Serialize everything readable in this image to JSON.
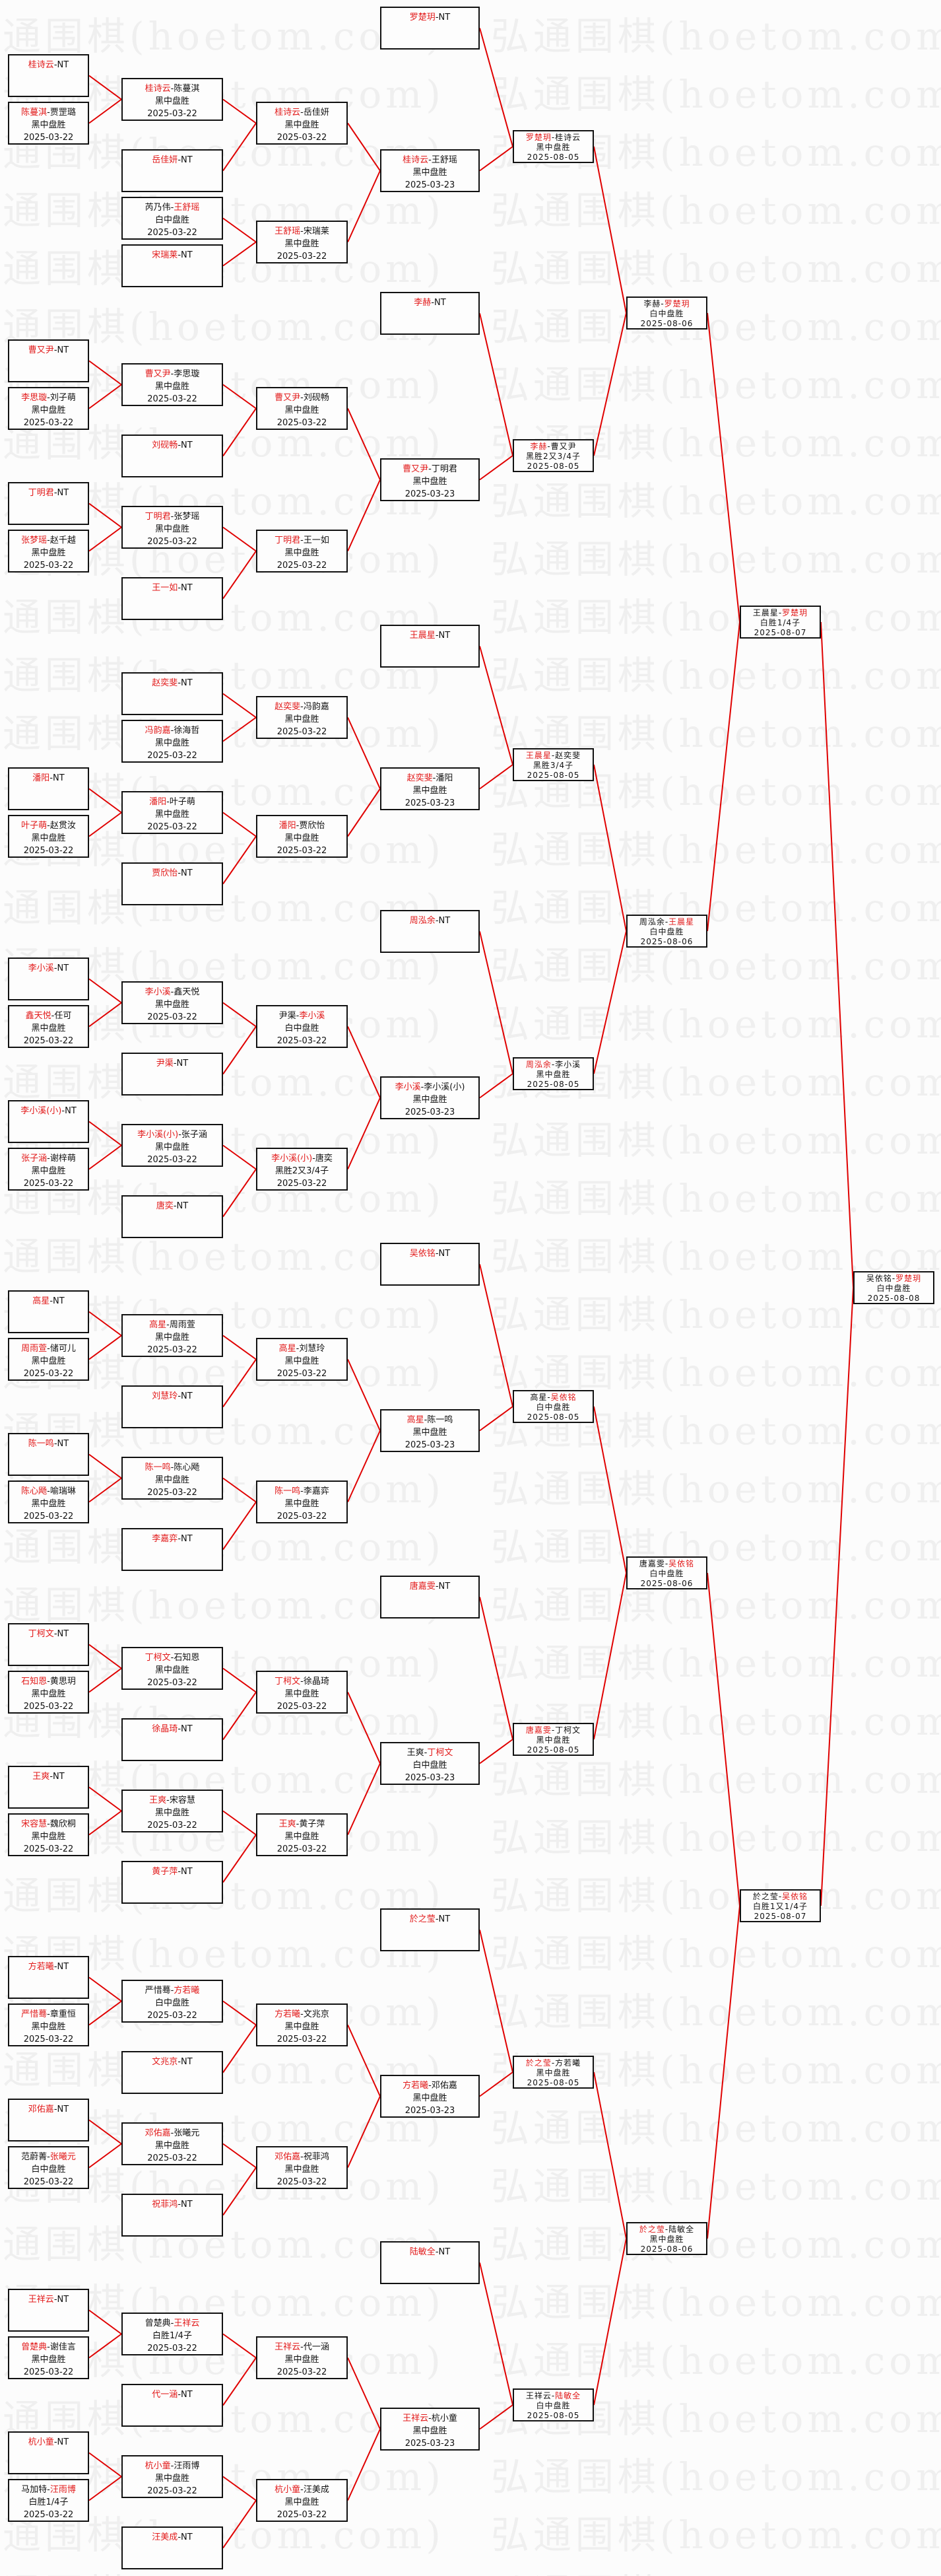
{
  "watermark": "弘通围棋(hoetom.com)",
  "separator": "-",
  "colors": {
    "winner": "#e21a1a",
    "link": "#e00000",
    "border": "#111111"
  },
  "rounds": [
    {
      "matches": [
        {
          "p1": "桂诗云",
          "p2": "NT",
          "winner": 1
        },
        {
          "p1": "陈蔓淇",
          "p2": "贾罡璐",
          "winner": 1,
          "result": "黑中盘胜",
          "date": "2025-03-22"
        },
        {
          "p1": "曹又尹",
          "p2": "NT",
          "winner": 1
        },
        {
          "p1": "李思璇",
          "p2": "刘子萌",
          "winner": 1,
          "result": "黑中盘胜",
          "date": "2025-03-22"
        },
        {
          "p1": "丁明君",
          "p2": "NT",
          "winner": 1
        },
        {
          "p1": "张梦瑶",
          "p2": "赵千越",
          "winner": 1,
          "result": "黑中盘胜",
          "date": "2025-03-22"
        },
        {
          "p1": "潘阳",
          "p2": "NT",
          "winner": 1
        },
        {
          "p1": "叶子萌",
          "p2": "赵贯汝",
          "winner": 1,
          "result": "黑中盘胜",
          "date": "2025-03-22"
        },
        {
          "p1": "李小溪",
          "p2": "NT",
          "winner": 1
        },
        {
          "p1": "鑫天悦",
          "p2": "任可",
          "winner": 1,
          "result": "黑中盘胜",
          "date": "2025-03-22"
        },
        {
          "p1": "李小溪(小)",
          "p2": "NT",
          "winner": 1
        },
        {
          "p1": "张子涵",
          "p2": "谢梓萌",
          "winner": 1,
          "result": "黑中盘胜",
          "date": "2025-03-22"
        },
        {
          "p1": "高星",
          "p2": "NT",
          "winner": 1
        },
        {
          "p1": "周雨萱",
          "p2": "储可儿",
          "winner": 1,
          "result": "黑中盘胜",
          "date": "2025-03-22"
        },
        {
          "p1": "陈一鸣",
          "p2": "NT",
          "winner": 1
        },
        {
          "p1": "陈心飏",
          "p2": "喻瑞琳",
          "winner": 1,
          "result": "黑中盘胜",
          "date": "2025-03-22"
        },
        {
          "p1": "丁柯文",
          "p2": "NT",
          "winner": 1
        },
        {
          "p1": "石知恩",
          "p2": "黄思玥",
          "winner": 1,
          "result": "黑中盘胜",
          "date": "2025-03-22"
        },
        {
          "p1": "王爽",
          "p2": "NT",
          "winner": 1
        },
        {
          "p1": "宋容慧",
          "p2": "魏欣桐",
          "winner": 1,
          "result": "黑中盘胜",
          "date": "2025-03-22"
        },
        {
          "p1": "方若曦",
          "p2": "NT",
          "winner": 1
        },
        {
          "p1": "严惜蓦",
          "p2": "章重恒",
          "winner": 1,
          "result": "黑中盘胜",
          "date": "2025-03-22"
        },
        {
          "p1": "邓佑嘉",
          "p2": "NT",
          "winner": 1
        },
        {
          "p1": "范蔚菁",
          "p2": "张曦元",
          "winner": 2,
          "result": "白中盘胜",
          "date": "2025-03-22"
        },
        {
          "p1": "王祥云",
          "p2": "NT",
          "winner": 1
        },
        {
          "p1": "曾楚典",
          "p2": "谢佳言",
          "winner": 1,
          "result": "黑中盘胜",
          "date": "2025-03-22"
        },
        {
          "p1": "杭小童",
          "p2": "NT",
          "winner": 1
        },
        {
          "p1": "马加特",
          "p2": "汪雨博",
          "winner": 2,
          "result": "白胜1/4子",
          "date": "2025-03-22"
        }
      ]
    },
    {
      "matches": [
        {
          "p1": "桂诗云",
          "p2": "陈蔓淇",
          "winner": 1,
          "result": "黑中盘胜",
          "date": "2025-03-22"
        },
        {
          "p1": "岳佳妍",
          "p2": "NT",
          "winner": 1
        },
        {
          "p1": "芮乃伟",
          "p2": "王舒瑶",
          "winner": 2,
          "result": "白中盘胜",
          "date": "2025-03-22"
        },
        {
          "p1": "宋瑞莱",
          "p2": "NT",
          "winner": 1
        },
        {
          "p1": "曹又尹",
          "p2": "李思璇",
          "winner": 1,
          "result": "黑中盘胜",
          "date": "2025-03-22"
        },
        {
          "p1": "刘砚畅",
          "p2": "NT",
          "winner": 1
        },
        {
          "p1": "丁明君",
          "p2": "张梦瑶",
          "winner": 1,
          "result": "黑中盘胜",
          "date": "2025-03-22"
        },
        {
          "p1": "王一如",
          "p2": "NT",
          "winner": 1
        },
        {
          "p1": "赵奕斐",
          "p2": "NT",
          "winner": 1
        },
        {
          "p1": "冯韵嘉",
          "p2": "徐海哲",
          "winner": 1,
          "result": "黑中盘胜",
          "date": "2025-03-22"
        },
        {
          "p1": "潘阳",
          "p2": "叶子萌",
          "winner": 1,
          "result": "黑中盘胜",
          "date": "2025-03-22"
        },
        {
          "p1": "贾欣怡",
          "p2": "NT",
          "winner": 1
        },
        {
          "p1": "李小溪",
          "p2": "鑫天悦",
          "winner": 1,
          "result": "黑中盘胜",
          "date": "2025-03-22"
        },
        {
          "p1": "尹渠",
          "p2": "NT",
          "winner": 1
        },
        {
          "p1": "李小溪(小)",
          "p2": "张子涵",
          "winner": 1,
          "result": "黑中盘胜",
          "date": "2025-03-22"
        },
        {
          "p1": "唐奕",
          "p2": "NT",
          "winner": 1
        },
        {
          "p1": "高星",
          "p2": "周雨萱",
          "winner": 1,
          "result": "黑中盘胜",
          "date": "2025-03-22"
        },
        {
          "p1": "刘慧玲",
          "p2": "NT",
          "winner": 1
        },
        {
          "p1": "陈一鸣",
          "p2": "陈心飏",
          "winner": 1,
          "result": "黑中盘胜",
          "date": "2025-03-22"
        },
        {
          "p1": "李嘉弈",
          "p2": "NT",
          "winner": 1
        },
        {
          "p1": "丁柯文",
          "p2": "石知恩",
          "winner": 1,
          "result": "黑中盘胜",
          "date": "2025-03-22"
        },
        {
          "p1": "徐晶琦",
          "p2": "NT",
          "winner": 1
        },
        {
          "p1": "王爽",
          "p2": "宋容慧",
          "winner": 1,
          "result": "黑中盘胜",
          "date": "2025-03-22"
        },
        {
          "p1": "黄子萍",
          "p2": "NT",
          "winner": 1
        },
        {
          "p1": "严惜蓦",
          "p2": "方若曦",
          "winner": 2,
          "result": "白中盘胜",
          "date": "2025-03-22"
        },
        {
          "p1": "文兆京",
          "p2": "NT",
          "winner": 1
        },
        {
          "p1": "邓佑嘉",
          "p2": "张曦元",
          "winner": 1,
          "result": "黑中盘胜",
          "date": "2025-03-22"
        },
        {
          "p1": "祝菲鸿",
          "p2": "NT",
          "winner": 1
        },
        {
          "p1": "曾楚典",
          "p2": "王祥云",
          "winner": 2,
          "result": "白胜1/4子",
          "date": "2025-03-22"
        },
        {
          "p1": "代一涵",
          "p2": "NT",
          "winner": 1
        },
        {
          "p1": "杭小童",
          "p2": "汪雨博",
          "winner": 1,
          "result": "黑中盘胜",
          "date": "2025-03-22"
        },
        {
          "p1": "汪美成",
          "p2": "NT",
          "winner": 1
        }
      ]
    },
    {
      "matches": [
        {
          "p1": "桂诗云",
          "p2": "岳佳妍",
          "winner": 1,
          "result": "黑中盘胜",
          "date": "2025-03-22"
        },
        {
          "p1": "王舒瑶",
          "p2": "宋瑞莱",
          "winner": 1,
          "result": "黑中盘胜",
          "date": "2025-03-22"
        },
        {
          "p1": "曹又尹",
          "p2": "刘砚畅",
          "winner": 1,
          "result": "黑中盘胜",
          "date": "2025-03-22"
        },
        {
          "p1": "丁明君",
          "p2": "王一如",
          "winner": 1,
          "result": "黑中盘胜",
          "date": "2025-03-22"
        },
        {
          "p1": "赵奕斐",
          "p2": "冯韵嘉",
          "winner": 1,
          "result": "黑中盘胜",
          "date": "2025-03-22"
        },
        {
          "p1": "潘阳",
          "p2": "贾欣怡",
          "winner": 1,
          "result": "黑中盘胜",
          "date": "2025-03-22"
        },
        {
          "p1": "尹渠",
          "p2": "李小溪",
          "winner": 2,
          "result": "白中盘胜",
          "date": "2025-03-22"
        },
        {
          "p1": "李小溪(小)",
          "p2": "唐奕",
          "winner": 1,
          "result": "黑胜2又3/4子",
          "date": "2025-03-22"
        },
        {
          "p1": "高星",
          "p2": "刘慧玲",
          "winner": 1,
          "result": "黑中盘胜",
          "date": "2025-03-22"
        },
        {
          "p1": "陈一鸣",
          "p2": "李嘉弈",
          "winner": 1,
          "result": "黑中盘胜",
          "date": "2025-03-22"
        },
        {
          "p1": "丁柯文",
          "p2": "徐晶琦",
          "winner": 1,
          "result": "黑中盘胜",
          "date": "2025-03-22"
        },
        {
          "p1": "王爽",
          "p2": "黄子萍",
          "winner": 1,
          "result": "黑中盘胜",
          "date": "2025-03-22"
        },
        {
          "p1": "方若曦",
          "p2": "文兆京",
          "winner": 1,
          "result": "黑中盘胜",
          "date": "2025-03-22"
        },
        {
          "p1": "邓佑嘉",
          "p2": "祝菲鸿",
          "winner": 1,
          "result": "黑中盘胜",
          "date": "2025-03-22"
        },
        {
          "p1": "王祥云",
          "p2": "代一涵",
          "winner": 1,
          "result": "黑中盘胜",
          "date": "2025-03-22"
        },
        {
          "p1": "杭小童",
          "p2": "汪美成",
          "winner": 1,
          "result": "黑中盘胜",
          "date": "2025-03-22"
        }
      ]
    },
    {
      "matches": [
        {
          "p1": "罗楚玥",
          "p2": "NT",
          "winner": 1
        },
        {
          "p1": "桂诗云",
          "p2": "王舒瑶",
          "winner": 1,
          "result": "黑中盘胜",
          "date": "2025-03-23"
        },
        {
          "p1": "李赫",
          "p2": "NT",
          "winner": 1
        },
        {
          "p1": "曹又尹",
          "p2": "丁明君",
          "winner": 1,
          "result": "黑中盘胜",
          "date": "2025-03-23"
        },
        {
          "p1": "王晨星",
          "p2": "NT",
          "winner": 1
        },
        {
          "p1": "赵奕斐",
          "p2": "潘阳",
          "winner": 1,
          "result": "黑中盘胜",
          "date": "2025-03-23"
        },
        {
          "p1": "周泓余",
          "p2": "NT",
          "winner": 1
        },
        {
          "p1": "李小溪",
          "p2": "李小溪(小)",
          "winner": 1,
          "result": "黑中盘胜",
          "date": "2025-03-23"
        },
        {
          "p1": "吴依铭",
          "p2": "NT",
          "winner": 1
        },
        {
          "p1": "高星",
          "p2": "陈一鸣",
          "winner": 1,
          "result": "黑中盘胜",
          "date": "2025-03-23"
        },
        {
          "p1": "唐嘉雯",
          "p2": "NT",
          "winner": 1
        },
        {
          "p1": "王爽",
          "p2": "丁柯文",
          "winner": 2,
          "result": "白中盘胜",
          "date": "2025-03-23"
        },
        {
          "p1": "於之莹",
          "p2": "NT",
          "winner": 1
        },
        {
          "p1": "方若曦",
          "p2": "邓佑嘉",
          "winner": 1,
          "result": "黑中盘胜",
          "date": "2025-03-23"
        },
        {
          "p1": "陆敏全",
          "p2": "NT",
          "winner": 1
        },
        {
          "p1": "王祥云",
          "p2": "杭小童",
          "winner": 1,
          "result": "黑中盘胜",
          "date": "2025-03-23"
        }
      ]
    },
    {
      "matches": [
        {
          "p1": "罗楚玥",
          "p2": "桂诗云",
          "winner": 1,
          "result": "黑中盘胜",
          "date": "2025-08-05"
        },
        {
          "p1": "李赫",
          "p2": "曹又尹",
          "winner": 1,
          "result": "黑胜2又3/4子",
          "date": "2025-08-05"
        },
        {
          "p1": "王晨星",
          "p2": "赵奕斐",
          "winner": 1,
          "result": "黑胜3/4子",
          "date": "2025-08-05"
        },
        {
          "p1": "周泓余",
          "p2": "李小溪",
          "winner": 1,
          "result": "黑中盘胜",
          "date": "2025-08-05"
        },
        {
          "p1": "高星",
          "p2": "吴依铭",
          "winner": 2,
          "result": "白中盘胜",
          "date": "2025-08-05"
        },
        {
          "p1": "唐嘉雯",
          "p2": "丁柯文",
          "winner": 1,
          "result": "黑中盘胜",
          "date": "2025-08-05"
        },
        {
          "p1": "於之莹",
          "p2": "方若曦",
          "winner": 1,
          "result": "黑中盘胜",
          "date": "2025-08-05"
        },
        {
          "p1": "王祥云",
          "p2": "陆敏全",
          "winner": 2,
          "result": "白中盘胜",
          "date": "2025-08-05"
        }
      ]
    },
    {
      "matches": [
        {
          "p1": "李赫",
          "p2": "罗楚玥",
          "winner": 2,
          "result": "白中盘胜",
          "date": "2025-08-06"
        },
        {
          "p1": "周泓余",
          "p2": "王晨星",
          "winner": 2,
          "result": "白中盘胜",
          "date": "2025-08-06"
        },
        {
          "p1": "唐嘉雯",
          "p2": "吴依铭",
          "winner": 2,
          "result": "白中盘胜",
          "date": "2025-08-06"
        },
        {
          "p1": "於之莹",
          "p2": "陆敏全",
          "winner": 1,
          "result": "黑中盘胜",
          "date": "2025-08-06"
        }
      ]
    },
    {
      "matches": [
        {
          "p1": "王晨星",
          "p2": "罗楚玥",
          "winner": 2,
          "result": "白胜1/4子",
          "date": "2025-08-07"
        },
        {
          "p1": "於之莹",
          "p2": "吴依铭",
          "winner": 2,
          "result": "白胜1又1/4子",
          "date": "2025-08-07"
        }
      ]
    },
    {
      "matches": [
        {
          "p1": "吴依铭",
          "p2": "罗楚玥",
          "winner": 2,
          "result": "白中盘胜",
          "date": "2025-08-08"
        }
      ]
    }
  ]
}
